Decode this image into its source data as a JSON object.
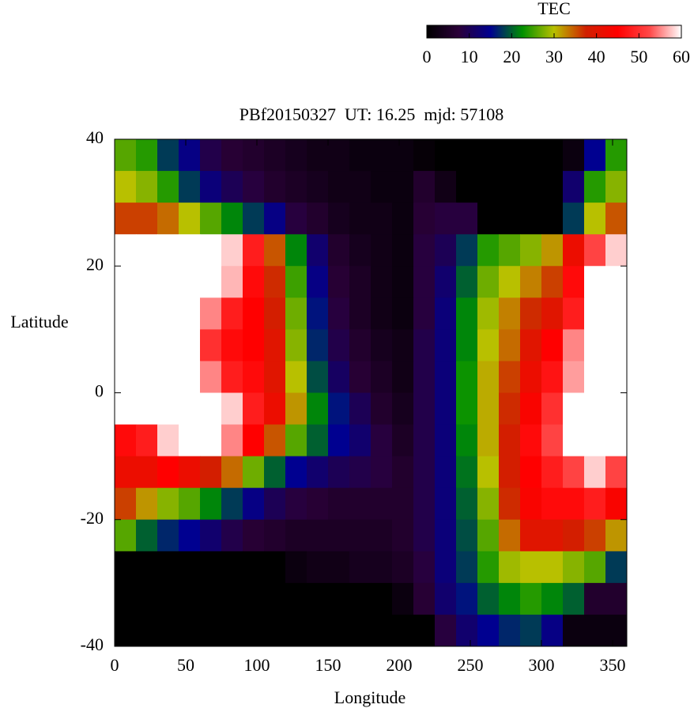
{
  "chart_data": {
    "type": "heatmap",
    "title": "PBf20150327  UT: 16.25  mjd: 57108",
    "xlabel": "Longitude",
    "ylabel": "Latitude",
    "colorbar_label": "TEC",
    "x": [
      7.5,
      22.5,
      37.5,
      52.5,
      67.5,
      82.5,
      97.5,
      112.5,
      127.5,
      142.5,
      157.5,
      172.5,
      187.5,
      202.5,
      217.5,
      232.5,
      247.5,
      262.5,
      277.5,
      292.5,
      307.5,
      322.5,
      337.5,
      352.5
    ],
    "y": [
      37.5,
      32.5,
      27.5,
      22.5,
      17.5,
      12.5,
      7.5,
      2.5,
      -2.5,
      -7.5,
      -12.5,
      -17.5,
      -22.5,
      -27.5,
      -32.5,
      -37.5
    ],
    "z": [
      [
        26,
        24,
        18,
        14,
        9,
        7,
        6,
        5,
        4,
        3,
        3,
        2,
        2,
        2,
        1,
        0,
        0,
        0,
        0,
        0,
        0,
        2,
        15,
        24
      ],
      [
        30,
        28,
        24,
        18,
        13,
        10,
        8,
        6,
        5,
        4,
        3,
        3,
        2,
        2,
        6,
        3,
        0,
        0,
        0,
        0,
        0,
        12,
        24,
        28
      ],
      [
        36,
        36,
        34,
        30,
        26,
        22,
        18,
        14,
        8,
        6,
        4,
        3,
        3,
        2,
        7,
        8,
        8,
        0,
        0,
        0,
        0,
        18,
        30,
        35
      ],
      [
        60,
        60,
        60,
        60,
        60,
        58,
        48,
        35,
        22,
        12,
        6,
        4,
        3,
        2,
        8,
        10,
        18,
        24,
        26,
        28,
        32,
        42,
        52,
        58
      ],
      [
        60,
        60,
        60,
        60,
        60,
        57,
        46,
        37,
        25,
        14,
        7,
        5,
        3,
        2,
        8,
        12,
        20,
        27,
        30,
        33,
        36,
        46,
        60,
        60
      ],
      [
        60,
        60,
        60,
        60,
        55,
        48,
        45,
        38,
        27,
        16,
        8,
        5,
        3,
        2,
        8,
        13,
        22,
        29,
        33,
        37,
        40,
        48,
        60,
        60
      ],
      [
        60,
        60,
        60,
        60,
        50,
        46,
        45,
        40,
        28,
        17,
        9,
        6,
        4,
        3,
        9,
        13,
        22,
        30,
        34,
        40,
        45,
        55,
        60,
        60
      ],
      [
        60,
        60,
        60,
        60,
        55,
        48,
        46,
        40,
        30,
        19,
        11,
        7,
        5,
        3,
        9,
        13,
        23,
        31,
        36,
        42,
        47,
        56,
        60,
        60
      ],
      [
        60,
        60,
        60,
        60,
        60,
        58,
        48,
        42,
        32,
        22,
        16,
        10,
        6,
        4,
        9,
        13,
        23,
        31,
        37,
        44,
        50,
        60,
        60,
        60
      ],
      [
        46,
        48,
        58,
        60,
        60,
        55,
        45,
        35,
        26,
        20,
        15,
        12,
        8,
        5,
        9,
        13,
        22,
        31,
        38,
        46,
        52,
        60,
        60,
        60
      ],
      [
        42,
        42,
        45,
        42,
        38,
        34,
        27,
        20,
        15,
        12,
        10,
        9,
        8,
        6,
        9,
        13,
        21,
        30,
        38,
        45,
        48,
        52,
        58,
        52
      ],
      [
        36,
        32,
        28,
        26,
        22,
        18,
        14,
        10,
        8,
        7,
        6,
        6,
        6,
        6,
        9,
        13,
        20,
        28,
        37,
        44,
        46,
        46,
        48,
        44
      ],
      [
        26,
        20,
        17,
        15,
        12,
        9,
        7,
        6,
        5,
        5,
        5,
        5,
        5,
        6,
        9,
        13,
        19,
        26,
        34,
        40,
        40,
        38,
        36,
        32
      ],
      [
        0,
        0,
        0,
        0,
        0,
        0,
        0,
        0,
        2,
        3,
        3,
        4,
        4,
        5,
        8,
        13,
        18,
        24,
        29,
        30,
        30,
        28,
        26,
        18
      ],
      [
        0,
        0,
        0,
        0,
        0,
        0,
        0,
        0,
        0,
        0,
        0,
        0,
        0,
        2,
        7,
        12,
        16,
        20,
        22,
        24,
        22,
        20,
        6,
        6
      ],
      [
        0,
        0,
        0,
        0,
        0,
        0,
        0,
        0,
        0,
        0,
        0,
        0,
        0,
        0,
        0,
        8,
        12,
        15,
        17,
        18,
        14,
        2,
        2,
        2
      ]
    ],
    "xlim": [
      0,
      360
    ],
    "xticks": [
      0,
      50,
      100,
      150,
      200,
      250,
      300,
      350
    ],
    "ylim": [
      -40,
      40
    ],
    "yticks": [
      -40,
      -20,
      0,
      20,
      40
    ],
    "zlim": [
      0,
      60
    ],
    "zticks": [
      0,
      10,
      20,
      30,
      40,
      50,
      60
    ],
    "colormap": [
      "#000000",
      "#2a0038",
      "#000090",
      "#009000",
      "#b8c000",
      "#d02000",
      "#ff0000",
      "#ff4848",
      "#ffffff"
    ]
  }
}
